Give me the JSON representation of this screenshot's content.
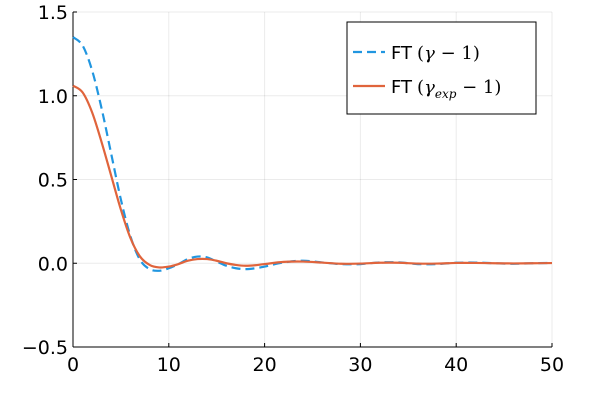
{
  "chart_data": {
    "type": "line",
    "xlim": [
      0,
      50
    ],
    "ylim": [
      -0.5,
      1.5
    ],
    "x_ticks": [
      0,
      10,
      20,
      30,
      40,
      50
    ],
    "y_ticks": [
      -0.5,
      0.0,
      0.5,
      1.0,
      1.5
    ],
    "x_tick_labels": [
      "0",
      "10",
      "20",
      "30",
      "40",
      "50"
    ],
    "y_tick_labels": [
      "−0.5",
      "0.0",
      "0.5",
      "1.0",
      "1.5"
    ],
    "grid": true,
    "legend_position": "top-right",
    "series": [
      {
        "name": "FT (γ − 1)",
        "label_prefix": "FT",
        "label_open": "(",
        "label_var": "γ",
        "label_sub": "",
        "label_rest": " − 1)",
        "color": "#2196e0",
        "style": "dashed",
        "x": [
          0,
          1,
          2,
          3,
          4,
          5,
          6,
          7,
          8,
          9,
          10,
          11,
          12,
          13,
          14,
          15,
          16,
          17,
          18,
          19,
          20,
          22,
          24,
          26,
          28,
          30,
          32,
          34,
          36,
          38,
          40,
          42,
          44,
          46,
          48,
          50
        ],
        "y": [
          1.35,
          1.3,
          1.15,
          0.92,
          0.65,
          0.38,
          0.16,
          0.02,
          -0.035,
          -0.045,
          -0.03,
          -0.005,
          0.025,
          0.04,
          0.035,
          0.01,
          -0.015,
          -0.03,
          -0.035,
          -0.03,
          -0.02,
          0.005,
          0.015,
          0.005,
          -0.005,
          -0.005,
          0.005,
          0.005,
          -0.005,
          -0.005,
          0.003,
          0.004,
          0.0,
          -0.003,
          0.0,
          0.002
        ]
      },
      {
        "name": "FT (γ_exp − 1)",
        "label_prefix": "FT",
        "label_open": "(",
        "label_var": "γ",
        "label_sub": "exp",
        "label_rest": " − 1)",
        "color": "#e0643c",
        "style": "solid",
        "x": [
          0,
          1,
          2,
          3,
          4,
          5,
          6,
          7,
          8,
          9,
          10,
          11,
          12,
          13,
          14,
          15,
          16,
          17,
          18,
          19,
          20,
          22,
          24,
          26,
          28,
          30,
          32,
          34,
          36,
          38,
          40,
          42,
          44,
          46,
          48,
          50
        ],
        "y": [
          1.06,
          1.02,
          0.9,
          0.72,
          0.52,
          0.32,
          0.15,
          0.04,
          -0.01,
          -0.025,
          -0.02,
          -0.005,
          0.015,
          0.025,
          0.025,
          0.015,
          0.0,
          -0.01,
          -0.015,
          -0.012,
          -0.005,
          0.008,
          0.01,
          0.004,
          -0.003,
          -0.002,
          0.003,
          0.003,
          -0.002,
          -0.002,
          0.002,
          0.002,
          0.0,
          -0.001,
          0.0,
          0.001
        ]
      }
    ]
  }
}
